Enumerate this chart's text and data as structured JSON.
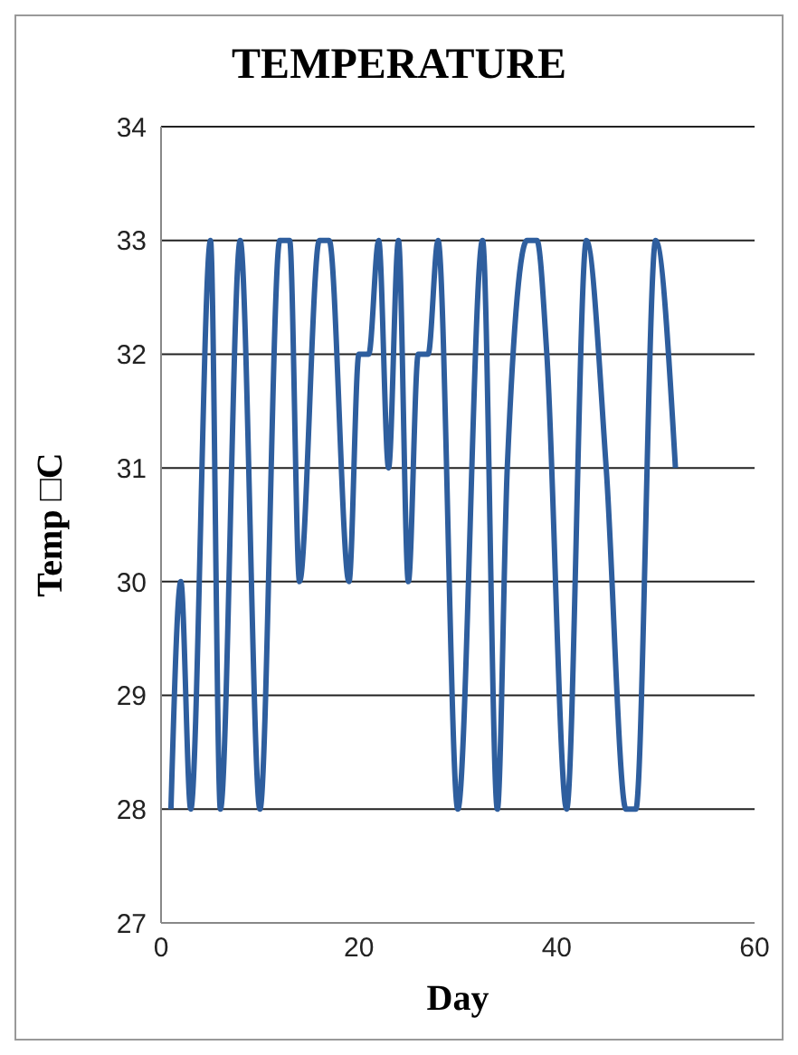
{
  "chart_data": {
    "type": "line",
    "title": "TEMPERATURE",
    "xlabel": "Day",
    "ylabel": "Temp □C",
    "x": [
      1,
      2,
      3,
      5,
      6,
      8,
      10,
      12,
      13,
      14,
      16,
      17,
      19,
      20,
      21,
      22,
      23,
      24,
      25,
      26,
      27,
      28,
      30,
      32.5,
      34,
      35,
      37,
      38,
      39,
      41,
      43,
      45,
      47,
      48,
      50,
      52
    ],
    "series": [
      {
        "color": "#2e5e9e",
        "values": [
          28,
          30,
          28,
          33,
          28,
          33,
          28,
          33,
          33,
          30,
          33,
          33,
          30,
          32,
          32,
          33,
          31,
          33,
          30,
          32,
          32,
          33,
          28,
          33,
          28,
          31,
          33,
          33,
          32,
          28,
          33,
          31,
          28,
          28,
          33,
          31
        ]
      }
    ],
    "xlim": [
      0,
      60
    ],
    "xticks": [
      0,
      20,
      40,
      60
    ],
    "ylim": [
      27,
      34
    ],
    "yticks": [
      27,
      28,
      29,
      30,
      31,
      32,
      33,
      34
    ],
    "grid": "y",
    "marker": "none",
    "line_style": "solid",
    "legend": false
  }
}
